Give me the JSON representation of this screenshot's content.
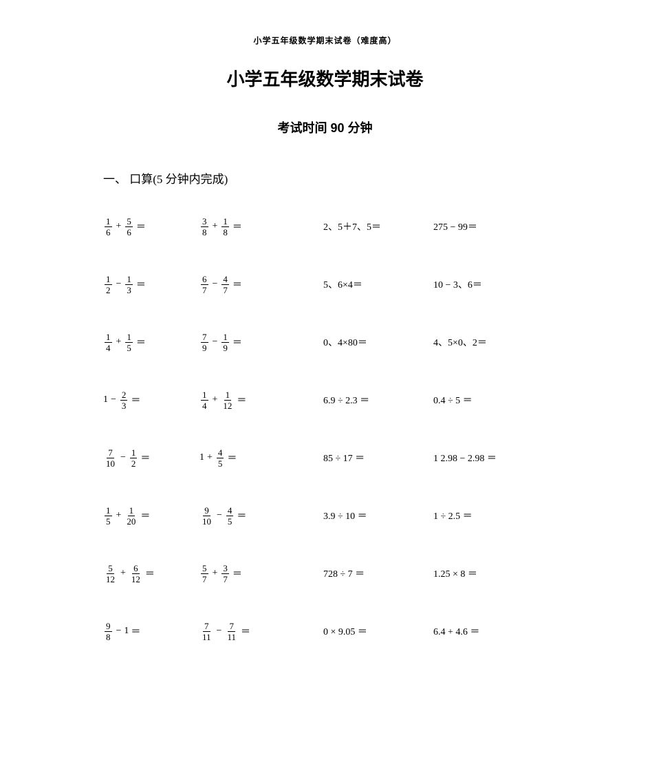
{
  "header_small": "小学五年级数学期末试卷（难度高）",
  "title": "小学五年级数学期末试卷",
  "subtitle": "考试时间  90 分钟",
  "section1": "一、 口算(5 分钟内完成)",
  "colors": {
    "text": "#000000",
    "background": "#ffffff"
  },
  "rows": [
    {
      "c1": {
        "type": "fracop",
        "a_num": "1",
        "a_den": "6",
        "op": "+",
        "b_num": "5",
        "b_den": "6"
      },
      "c2": {
        "type": "fracop",
        "a_num": "3",
        "a_den": "8",
        "op": "+",
        "b_num": "1",
        "b_den": "8"
      },
      "c3": {
        "type": "plain",
        "text": "2、5＋7、5＝"
      },
      "c4": {
        "type": "plain",
        "text": "275 − 99＝"
      }
    },
    {
      "c1": {
        "type": "fracop",
        "a_num": "1",
        "a_den": "2",
        "op": "−",
        "b_num": "1",
        "b_den": "3"
      },
      "c2": {
        "type": "fracop",
        "a_num": "6",
        "a_den": "7",
        "op": "−",
        "b_num": "4",
        "b_den": "7"
      },
      "c3": {
        "type": "plain",
        "text": "5、6×4＝"
      },
      "c4": {
        "type": "plain",
        "text": "10 − 3、6＝"
      }
    },
    {
      "c1": {
        "type": "fracop",
        "a_num": "1",
        "a_den": "4",
        "op": "+",
        "b_num": "1",
        "b_den": "5"
      },
      "c2": {
        "type": "fracop",
        "a_num": "7",
        "a_den": "9",
        "op": "−",
        "b_num": "1",
        "b_den": "9"
      },
      "c3": {
        "type": "plain",
        "text": "0、4×80＝"
      },
      "c4": {
        "type": "plain",
        "text": "4、5×0、2＝"
      }
    },
    {
      "c1": {
        "type": "int_minus_frac",
        "a": "1",
        "op": "−",
        "b_num": "2",
        "b_den": "3"
      },
      "c2": {
        "type": "fracop",
        "a_num": "1",
        "a_den": "4",
        "op": "+",
        "b_num": "1",
        "b_den": "12"
      },
      "c3": {
        "type": "plain",
        "text": "6.9 ÷ 2.3 ＝"
      },
      "c4": {
        "type": "plain",
        "text": "0.4 ÷ 5 ＝"
      }
    },
    {
      "c1": {
        "type": "fracop",
        "a_num": "7",
        "a_den": "10",
        "op": "−",
        "b_num": "1",
        "b_den": "2"
      },
      "c2": {
        "type": "int_plus_frac",
        "a": "1",
        "op": "+",
        "b_num": "4",
        "b_den": "5"
      },
      "c3": {
        "type": "plain",
        "text": "85 ÷ 17 ＝"
      },
      "c4": {
        "type": "plain",
        "text": "1 2.98 − 2.98 ＝"
      }
    },
    {
      "c1": {
        "type": "fracop",
        "a_num": "1",
        "a_den": "5",
        "op": "+",
        "b_num": "1",
        "b_den": "20"
      },
      "c2": {
        "type": "fracop",
        "a_num": "9",
        "a_den": "10",
        "op": "−",
        "b_num": "4",
        "b_den": "5"
      },
      "c3": {
        "type": "plain",
        "text": "3.9 ÷ 10 ＝"
      },
      "c4": {
        "type": "plain",
        "text": "1 ÷ 2.5 ＝"
      }
    },
    {
      "c1": {
        "type": "fracop",
        "a_num": "5",
        "a_den": "12",
        "op": "+",
        "b_num": "6",
        "b_den": "12"
      },
      "c2": {
        "type": "fracop",
        "a_num": "5",
        "a_den": "7",
        "op": "+",
        "b_num": "3",
        "b_den": "7"
      },
      "c3": {
        "type": "plain",
        "text": "728 ÷ 7 ＝"
      },
      "c4": {
        "type": "plain",
        "text": "1.25 × 8 ＝"
      }
    },
    {
      "c1": {
        "type": "frac_minus_int",
        "a_num": "9",
        "a_den": "8",
        "op": "−",
        "b": "1"
      },
      "c2": {
        "type": "fracop",
        "a_num": "7",
        "a_den": "11",
        "op": "−",
        "b_num": "7",
        "b_den": "11"
      },
      "c3": {
        "type": "plain",
        "text": "0 × 9.05 ＝"
      },
      "c4": {
        "type": "plain",
        "text": "6.4 + 4.6 ＝"
      }
    }
  ]
}
